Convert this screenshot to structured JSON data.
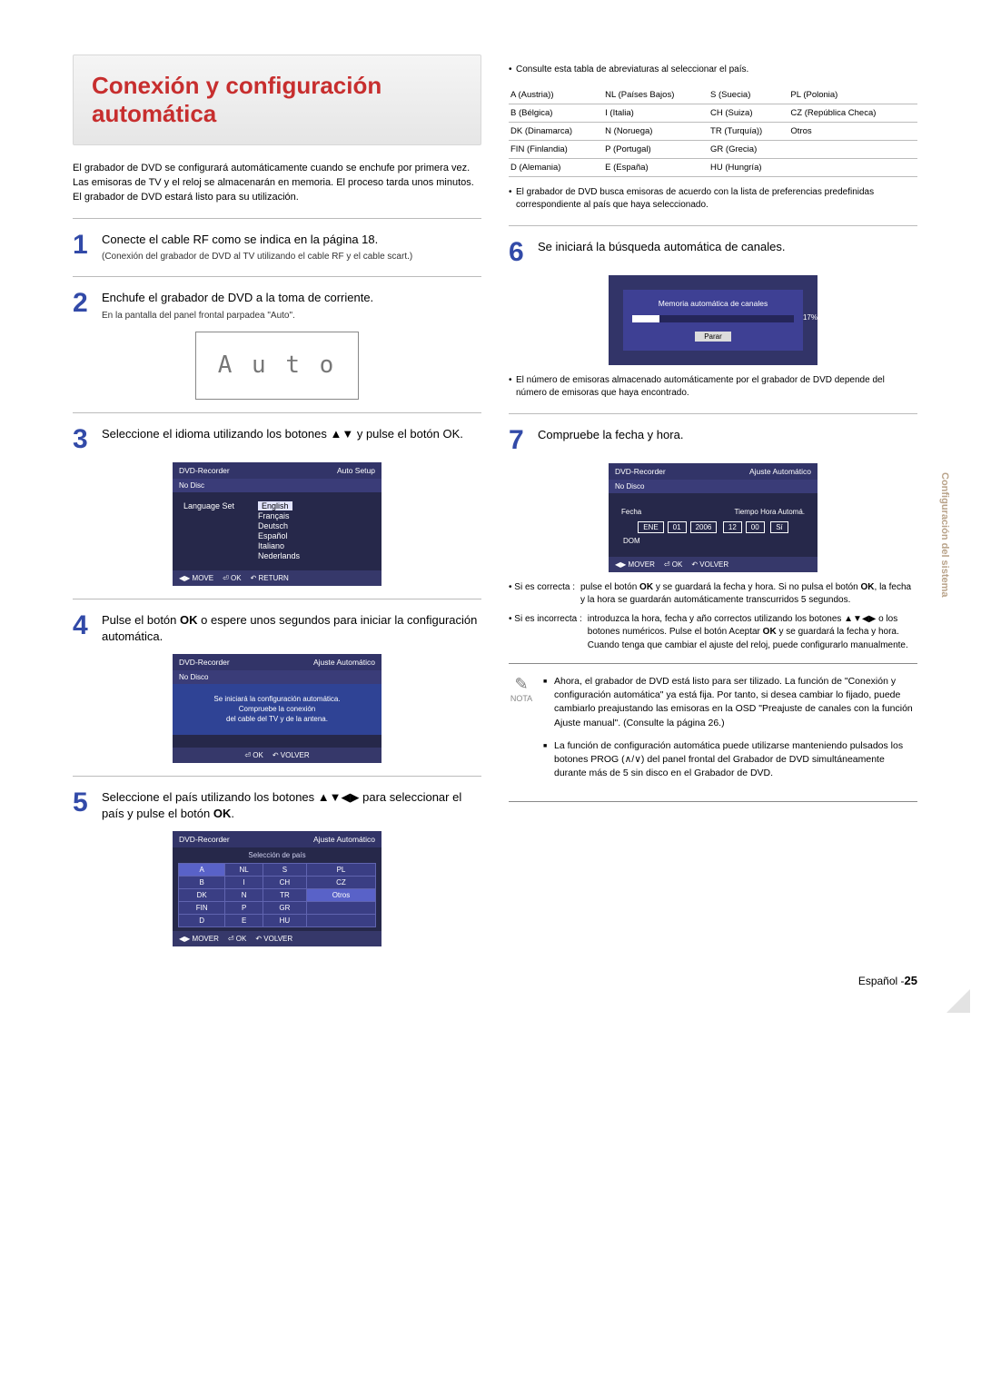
{
  "title": "Conexión y configuración automática",
  "intro": "El grabador de DVD se configurará automáticamente cuando se enchufe por primera vez. Las emisoras de TV y el reloj se almacenarán en memoria. El proceso tarda unos minutos. El grabador de DVD estará listo para su utilización.",
  "steps": {
    "1": {
      "lead": "Conecte el cable RF como se indica en la página 18.",
      "sub": "(Conexión del grabador de DVD al TV utilizando el cable RF y el cable scart.)"
    },
    "2": {
      "lead": "Enchufe el grabador de DVD a la toma de corriente.",
      "sub": "En la pantalla del panel frontal parpadea \"Auto\"."
    },
    "3": {
      "lead": "Seleccione el idioma utilizando los botones ▲▼ y pulse el botón OK."
    },
    "4": {
      "lead": "Pulse el botón OK o espere unos segundos para iniciar la configuración automática."
    },
    "5": {
      "lead": "Seleccione el país utilizando los botones ▲▼◀▶ para seleccionar el país y pulse el botón OK."
    },
    "6": {
      "lead": "Se iniciará la búsqueda automática de canales."
    },
    "7": {
      "lead": "Compruebe la fecha y hora."
    }
  },
  "digi_display": "A u t o",
  "osd_lang": {
    "hdr_l": "DVD-Recorder",
    "hdr_r": "Auto Setup",
    "bar": "No Disc",
    "label": "Language Set",
    "opts": [
      "English",
      "Français",
      "Deutsch",
      "Español",
      "Italiano",
      "Nederlands"
    ],
    "foot": [
      "◀▶ MOVE",
      "⏎ OK",
      "↶ RETURN"
    ]
  },
  "osd_auto": {
    "hdr_l": "DVD-Recorder",
    "hdr_r": "Ajuste Automático",
    "bar": "No Disco",
    "msg": "Se iniciará la configuración automática.\nCompruebe la conexión\ndel cable del TV y de la antena.",
    "foot": [
      "⏎ OK",
      "↶ VOLVER"
    ]
  },
  "osd_country": {
    "hdr_l": "DVD-Recorder",
    "hdr_r": "Ajuste Automático",
    "subtitle": "Selección de país",
    "rows": [
      [
        "A",
        "NL",
        "S",
        "PL"
      ],
      [
        "B",
        "I",
        "CH",
        "CZ"
      ],
      [
        "DK",
        "N",
        "TR",
        "Otros"
      ],
      [
        "FIN",
        "P",
        "GR",
        ""
      ],
      [
        "D",
        "E",
        "HU",
        ""
      ]
    ],
    "foot": [
      "◀▶ MOVER",
      "⏎ OK",
      "↶ VOLVER"
    ]
  },
  "abbr_intro": "Consulte esta tabla de abreviaturas al seleccionar el país.",
  "abbr_rows": [
    [
      "A (Austria))",
      "NL (Países Bajos)",
      "S (Suecia)",
      "PL (Polonia)"
    ],
    [
      "B (Bélgica)",
      "I (Italia)",
      "CH (Suiza)",
      "CZ (República Checa)"
    ],
    [
      "DK (Dinamarca)",
      "N (Noruega)",
      "TR (Turquía))",
      "Otros"
    ],
    [
      "FIN (Finlandia)",
      "P (Portugal)",
      "GR (Grecia)",
      ""
    ],
    [
      "D (Alemania)",
      "E (España)",
      "HU (Hungría)",
      ""
    ]
  ],
  "bul_list": "El grabador de DVD busca emisoras de acuerdo con la lista de preferencias predefinidas correspondiente al país que haya seleccionado.",
  "scan": {
    "title": "Memoria automática de canales",
    "pct": "17%",
    "btn": "Parar"
  },
  "bul_num": "El número de emisoras almacenado automáticamente por el grabador de DVD depende del número de emisoras que haya encontrado.",
  "osd_date": {
    "hdr_l": "DVD-Recorder",
    "hdr_r": "Ajuste Automático",
    "bar": "No Disco",
    "r1": "Fecha",
    "r1b": "Tiempo  Hora Automá.",
    "boxes": [
      "ENE",
      "01",
      "2006",
      "12",
      "00",
      "Sí"
    ],
    "dow": "DOM",
    "foot": [
      "◀▶ MOVER",
      "⏎ OK",
      "↶ VOLVER"
    ]
  },
  "corr_ok_l": "Si es correcta :",
  "corr_ok": "pulse el botón OK y se guardará la fecha y hora. Si no pulsa el botón OK, la fecha y la hora se guardarán automáticamente transcurridos 5 segundos.",
  "corr_no_l": "Si es incorrecta :",
  "corr_no": "introduzca la hora, fecha y año correctos utilizando los botones ▲▼◀▶ o los botones numéricos. Pulse el botón Aceptar OK y se guardará la fecha y hora. Cuando tenga que cambiar el ajuste del reloj, puede configurarlo manualmente.",
  "nota_label": "NOTA",
  "notes": [
    "Ahora, el grabador de DVD está listo para ser tilizado. La función de \"Conexión y configuración automática\" ya está fija. Por tanto, si desea cambiar lo fijado, puede cambiarlo preajustando las emisoras en la OSD \"Preajuste de canales con la función Ajuste manual\". (Consulte la página 26.)",
    "La función de configuración automática puede utilizarse manteniendo pulsados los botones PROG (∧/∨) del panel frontal del Grabador de DVD simultáneamente durante más de 5 sin disco en el Grabador de DVD."
  ],
  "side": "Configuración del sistema",
  "footer_l": "Español -",
  "footer_n": "25"
}
